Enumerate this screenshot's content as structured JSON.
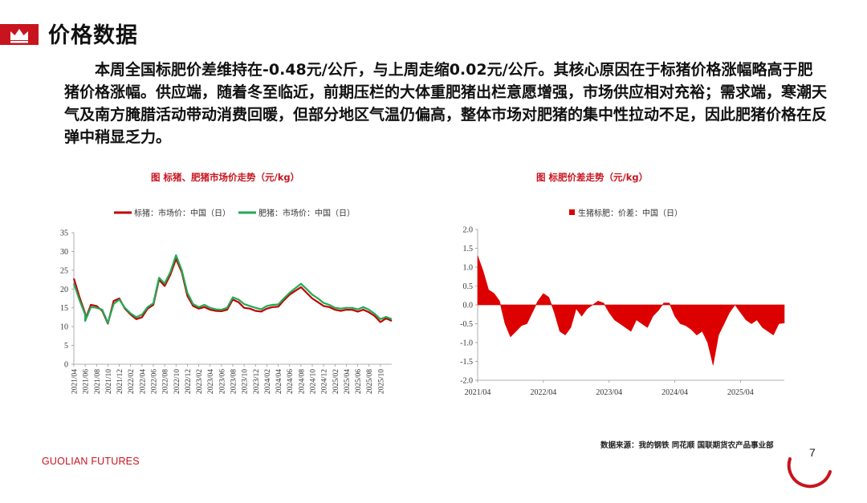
{
  "page": {
    "title": "价格数据",
    "paragraph": "本周全国标肥价差维持在-0.48元/公斤，与上周走缩0.02元/公斤。其核心原因在于标猪价格涨幅略高于肥猪价格涨幅。供应端，随着冬至临近，前期压栏的大体重肥猪出栏意愿增强，市场供应相对充裕；需求端，寒潮天气及南方腌腊活动带动消费回暖，但部分地区气温仍偏高，整体市场对肥猪的集中性拉动不足，因此肥猪价格在反弹中稍显乏力。",
    "source": "数据来源：我的钢铁  同花顺  国联期货农产品事业部",
    "brand": "GUOLIAN FUTURES",
    "page_number": "7",
    "colors": {
      "brand_red": "#c8141e",
      "series_red": "#c00000",
      "series_green": "#22aa55"
    },
    "icons": {
      "header": "crown-icon"
    }
  },
  "chart_data": [
    {
      "type": "line",
      "title": "图   标猪、肥猪市场价走势（元/kg）",
      "legend_position": "top",
      "ylim": [
        0,
        35
      ],
      "yticks": [
        0,
        5,
        10,
        15,
        20,
        25,
        30,
        35
      ],
      "xticks": [
        "2021/04",
        "2021/06",
        "2021/08",
        "2021/10",
        "2021/12",
        "2022/02",
        "2022/04",
        "2022/06",
        "2022/08",
        "2022/10",
        "2022/12",
        "2023/02",
        "2023/04",
        "2023/06",
        "2023/08",
        "2023/10",
        "2023/12",
        "2024/02",
        "2024/04",
        "2024/06",
        "2024/08",
        "2024/10",
        "2024/12",
        "2025/02",
        "2025/04",
        "2025/06",
        "2025/08",
        "2025/10"
      ],
      "x_start": "2021/04",
      "x_end": "2025/12",
      "series": [
        {
          "name": "标猪：市场价：中国（日）",
          "color": "#c00000",
          "points": [
            [
              "2021/04",
              22.8
            ],
            [
              "2021/05",
              17.8
            ],
            [
              "2021/06",
              13.5
            ],
            [
              "2021/06",
              11.8
            ],
            [
              "2021/07",
              15.8
            ],
            [
              "2021/08",
              15.5
            ],
            [
              "2021/09",
              14.2
            ],
            [
              "2021/10",
              10.8
            ],
            [
              "2021/11",
              16.8
            ],
            [
              "2021/12",
              17.5
            ],
            [
              "2022/01",
              14.8
            ],
            [
              "2022/02",
              13.2
            ],
            [
              "2022/03",
              12.0
            ],
            [
              "2022/04",
              12.5
            ],
            [
              "2022/05",
              14.8
            ],
            [
              "2022/06",
              15.8
            ],
            [
              "2022/07",
              22.5
            ],
            [
              "2022/08",
              20.8
            ],
            [
              "2022/09",
              23.8
            ],
            [
              "2022/10",
              28.0
            ],
            [
              "2022/11",
              24.5
            ],
            [
              "2022/12",
              18.2
            ],
            [
              "2023/01",
              15.5
            ],
            [
              "2023/02",
              14.8
            ],
            [
              "2023/03",
              15.2
            ],
            [
              "2023/04",
              14.5
            ],
            [
              "2023/05",
              14.2
            ],
            [
              "2023/06",
              14.1
            ],
            [
              "2023/07",
              14.5
            ],
            [
              "2023/08",
              17.2
            ],
            [
              "2023/09",
              16.5
            ],
            [
              "2023/10",
              15.0
            ],
            [
              "2023/11",
              14.8
            ],
            [
              "2023/12",
              14.2
            ],
            [
              "2024/01",
              14.0
            ],
            [
              "2024/02",
              14.8
            ],
            [
              "2024/03",
              15.2
            ],
            [
              "2024/04",
              15.3
            ],
            [
              "2024/05",
              17.0
            ],
            [
              "2024/06",
              18.5
            ],
            [
              "2024/07",
              19.5
            ],
            [
              "2024/08",
              20.5
            ],
            [
              "2024/09",
              19.0
            ],
            [
              "2024/10",
              17.5
            ],
            [
              "2024/11",
              16.5
            ],
            [
              "2024/12",
              15.5
            ],
            [
              "2025/01",
              15.2
            ],
            [
              "2025/02",
              14.5
            ],
            [
              "2025/03",
              14.2
            ],
            [
              "2025/04",
              14.5
            ],
            [
              "2025/05",
              14.5
            ],
            [
              "2025/06",
              14.0
            ],
            [
              "2025/07",
              14.5
            ],
            [
              "2025/08",
              13.8
            ],
            [
              "2025/09",
              12.8
            ],
            [
              "2025/10",
              11.2
            ],
            [
              "2025/11",
              12.2
            ],
            [
              "2025/12",
              11.5
            ]
          ]
        },
        {
          "name": "肥猪：市场价：中国（日）",
          "color": "#22aa55",
          "points": [
            [
              "2021/04",
              21.5
            ],
            [
              "2021/05",
              17.0
            ],
            [
              "2021/06",
              13.2
            ],
            [
              "2021/06",
              11.5
            ],
            [
              "2021/07",
              15.2
            ],
            [
              "2021/08",
              15.0
            ],
            [
              "2021/09",
              14.5
            ],
            [
              "2021/10",
              11.0
            ],
            [
              "2021/11",
              16.0
            ],
            [
              "2021/12",
              17.2
            ],
            [
              "2022/01",
              15.0
            ],
            [
              "2022/02",
              13.5
            ],
            [
              "2022/03",
              12.5
            ],
            [
              "2022/04",
              13.2
            ],
            [
              "2022/05",
              15.2
            ],
            [
              "2022/06",
              16.2
            ],
            [
              "2022/07",
              23.0
            ],
            [
              "2022/08",
              21.5
            ],
            [
              "2022/09",
              24.5
            ],
            [
              "2022/10",
              29.0
            ],
            [
              "2022/11",
              25.0
            ],
            [
              "2022/12",
              19.0
            ],
            [
              "2023/01",
              16.0
            ],
            [
              "2023/02",
              15.2
            ],
            [
              "2023/03",
              15.8
            ],
            [
              "2023/04",
              15.0
            ],
            [
              "2023/05",
              14.6
            ],
            [
              "2023/06",
              14.5
            ],
            [
              "2023/07",
              15.0
            ],
            [
              "2023/08",
              17.8
            ],
            [
              "2023/09",
              17.2
            ],
            [
              "2023/10",
              16.0
            ],
            [
              "2023/11",
              15.5
            ],
            [
              "2023/12",
              15.0
            ],
            [
              "2024/01",
              14.6
            ],
            [
              "2024/02",
              15.5
            ],
            [
              "2024/03",
              15.8
            ],
            [
              "2024/04",
              15.9
            ],
            [
              "2024/05",
              17.5
            ],
            [
              "2024/06",
              19.0
            ],
            [
              "2024/07",
              20.2
            ],
            [
              "2024/08",
              21.4
            ],
            [
              "2024/09",
              20.0
            ],
            [
              "2024/10",
              18.5
            ],
            [
              "2024/11",
              17.5
            ],
            [
              "2024/12",
              16.3
            ],
            [
              "2025/01",
              15.8
            ],
            [
              "2025/02",
              15.0
            ],
            [
              "2025/03",
              14.8
            ],
            [
              "2025/04",
              15.0
            ],
            [
              "2025/05",
              15.0
            ],
            [
              "2025/06",
              14.6
            ],
            [
              "2025/07",
              15.2
            ],
            [
              "2025/08",
              14.5
            ],
            [
              "2025/09",
              13.4
            ],
            [
              "2025/10",
              12.0
            ],
            [
              "2025/11",
              12.6
            ],
            [
              "2025/12",
              12.0
            ]
          ]
        }
      ]
    },
    {
      "type": "area",
      "title": "图   标肥价差走势（元/kg）",
      "legend_position": "top",
      "ylim": [
        -2.0,
        2.0
      ],
      "yticks": [
        -2.0,
        -1.5,
        -1.0,
        -0.5,
        0.0,
        0.5,
        1.0,
        1.5,
        2.0
      ],
      "xticks": [
        "2021/04",
        "2022/04",
        "2023/04",
        "2024/04",
        "2025/04"
      ],
      "x_start": "2021/04",
      "x_end": "2025/12",
      "series": [
        {
          "name": "生猪标肥：价差：中国（日）",
          "color": "#dd0000",
          "points": [
            [
              "2021/04",
              1.3
            ],
            [
              "2021/05",
              0.9
            ],
            [
              "2021/06",
              0.4
            ],
            [
              "2021/07",
              0.3
            ],
            [
              "2021/08",
              0.1
            ],
            [
              "2021/09",
              -0.5
            ],
            [
              "2021/10",
              -0.85
            ],
            [
              "2021/11",
              -0.7
            ],
            [
              "2021/12",
              -0.55
            ],
            [
              "2022/01",
              -0.5
            ],
            [
              "2022/02",
              -0.2
            ],
            [
              "2022/03",
              0.1
            ],
            [
              "2022/04",
              0.3
            ],
            [
              "2022/05",
              0.2
            ],
            [
              "2022/06",
              -0.2
            ],
            [
              "2022/07",
              -0.7
            ],
            [
              "2022/08",
              -0.8
            ],
            [
              "2022/09",
              -0.6
            ],
            [
              "2022/10",
              -0.1
            ],
            [
              "2022/11",
              -0.3
            ],
            [
              "2022/12",
              -0.1
            ],
            [
              "2023/01",
              0.0
            ],
            [
              "2023/02",
              0.1
            ],
            [
              "2023/03",
              0.05
            ],
            [
              "2023/04",
              -0.2
            ],
            [
              "2023/05",
              -0.4
            ],
            [
              "2023/06",
              -0.5
            ],
            [
              "2023/07",
              -0.6
            ],
            [
              "2023/08",
              -0.7
            ],
            [
              "2023/09",
              -0.4
            ],
            [
              "2023/10",
              -0.5
            ],
            [
              "2023/11",
              -0.6
            ],
            [
              "2023/12",
              -0.3
            ],
            [
              "2024/01",
              -0.15
            ],
            [
              "2024/02",
              0.05
            ],
            [
              "2024/03",
              0.05
            ],
            [
              "2024/04",
              -0.3
            ],
            [
              "2024/05",
              -0.5
            ],
            [
              "2024/06",
              -0.55
            ],
            [
              "2024/07",
              -0.65
            ],
            [
              "2024/08",
              -0.8
            ],
            [
              "2024/09",
              -0.7
            ],
            [
              "2024/10",
              -1.0
            ],
            [
              "2024/11",
              -1.6
            ],
            [
              "2024/12",
              -0.8
            ],
            [
              "2025/01",
              -0.5
            ],
            [
              "2025/02",
              -0.2
            ],
            [
              "2025/03",
              0.0
            ],
            [
              "2025/04",
              -0.2
            ],
            [
              "2025/05",
              -0.4
            ],
            [
              "2025/06",
              -0.5
            ],
            [
              "2025/07",
              -0.4
            ],
            [
              "2025/08",
              -0.6
            ],
            [
              "2025/09",
              -0.7
            ],
            [
              "2025/10",
              -0.8
            ],
            [
              "2025/11",
              -0.5
            ],
            [
              "2025/12",
              -0.48
            ]
          ]
        }
      ]
    }
  ]
}
